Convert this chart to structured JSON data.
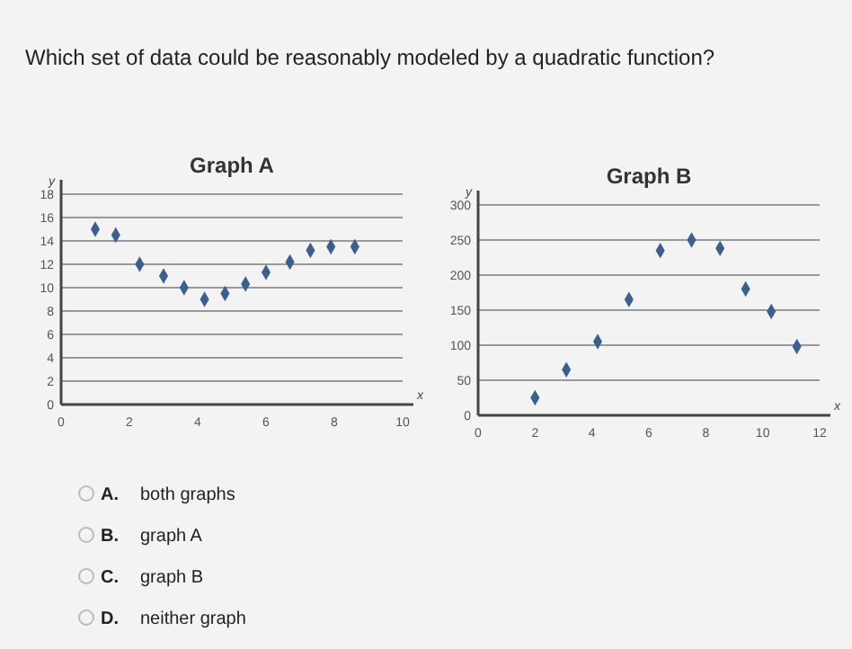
{
  "chart_data": [
    {
      "type": "other",
      "title": "Which set of data could be reasonably modeled by a quadratic function?"
    },
    {
      "type": "scatter",
      "title": "Graph A",
      "xlabel": "x",
      "ylabel": "y",
      "xlim": [
        0,
        10
      ],
      "xticks": [
        0,
        2,
        4,
        6,
        8,
        10
      ],
      "ylim": [
        0,
        18
      ],
      "yticks": [
        0,
        2,
        4,
        6,
        8,
        10,
        12,
        14,
        16,
        18
      ],
      "grid": "y",
      "marker": "diamond",
      "series": [
        {
          "color": "#3b5f8f",
          "x": [
            1,
            1.6,
            2.3,
            3,
            3.6,
            4.2,
            4.8,
            5.4,
            6,
            6.7,
            7.3,
            7.9,
            8.6
          ],
          "values": [
            15,
            14.5,
            12,
            11,
            10,
            9,
            9.5,
            10.3,
            11.3,
            12.2,
            13.2,
            13.5,
            13.5
          ]
        }
      ]
    },
    {
      "type": "scatter",
      "title": "Graph B",
      "xlabel": "x",
      "ylabel": "y",
      "xlim": [
        0,
        12
      ],
      "xticks": [
        0,
        2,
        4,
        6,
        8,
        10,
        12
      ],
      "ylim": [
        0,
        300
      ],
      "yticks": [
        0,
        50,
        100,
        150,
        200,
        250,
        300
      ],
      "grid": "y",
      "marker": "diamond",
      "series": [
        {
          "color": "#3b5f8f",
          "x": [
            2,
            3.1,
            4.2,
            5.3,
            6.4,
            7.5,
            8.5,
            9.4,
            10.3,
            11.2
          ],
          "values": [
            25,
            65,
            105,
            165,
            235,
            250,
            238,
            180,
            148,
            98
          ]
        }
      ]
    },
    {
      "type": "other",
      "annotations": [
        "A.",
        "both graphs",
        "B.",
        "graph A",
        "C.",
        "graph B",
        "D.",
        "neither graph"
      ]
    }
  ]
}
